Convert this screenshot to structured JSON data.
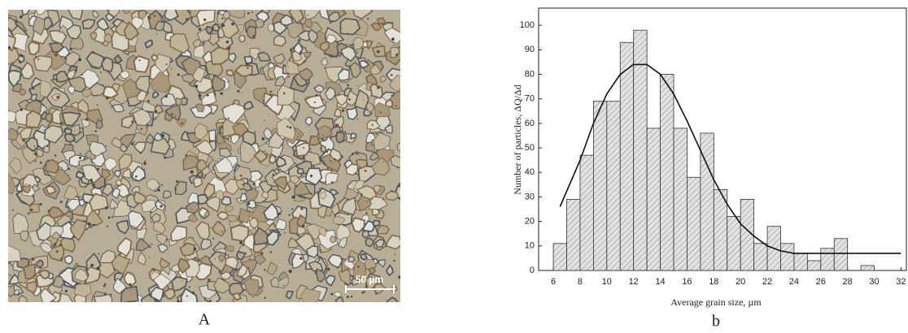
{
  "panels": [
    {
      "label": "A",
      "scale_bar": "50 µm"
    },
    {
      "label": "b"
    }
  ],
  "chart_data": {
    "type": "histogram",
    "xlabel": "Average grain size, µm",
    "ylabel": "Number of particles, ΔQ/Δd",
    "bins": [
      6,
      7,
      8,
      9,
      10,
      11,
      12,
      13,
      14,
      15,
      16,
      17,
      18,
      19,
      20,
      21,
      22,
      23,
      24,
      25,
      26,
      27,
      28,
      29,
      30
    ],
    "counts": [
      11,
      29,
      47,
      69,
      69,
      93,
      98,
      58,
      80,
      58,
      38,
      56,
      33,
      22,
      29,
      11,
      18,
      11,
      7,
      4,
      9,
      13,
      0,
      2
    ],
    "color": "#d9d9d9",
    "fit": {
      "x": [
        6.5,
        8,
        9,
        10,
        11,
        12,
        13,
        14,
        15,
        16,
        17,
        18,
        19,
        20,
        21,
        22,
        23,
        24,
        26,
        28,
        30,
        32
      ],
      "values": [
        26,
        45,
        60,
        72,
        80,
        84,
        84,
        80,
        72,
        61,
        49,
        37,
        27,
        19,
        14,
        10,
        8,
        7,
        7,
        7,
        7,
        7
      ]
    },
    "xlim": [
      4.9,
      32.4
    ],
    "ylim": [
      0,
      107
    ],
    "xticks": [
      6,
      8,
      10,
      12,
      14,
      16,
      18,
      20,
      22,
      24,
      26,
      28,
      30,
      32
    ],
    "yticks": [
      0,
      10,
      20,
      30,
      40,
      50,
      60,
      70,
      80,
      90,
      100
    ]
  }
}
